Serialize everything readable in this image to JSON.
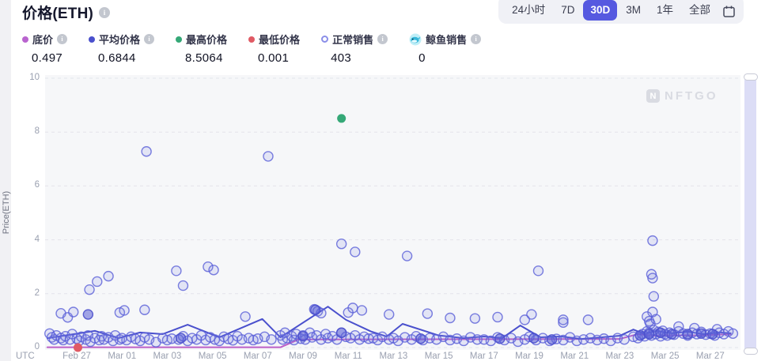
{
  "header": {
    "title": "价格(ETH)",
    "info_icon": "info-icon"
  },
  "watermark": {
    "logo_letter": "N",
    "text": "NFTGO"
  },
  "time_ranges": {
    "options": [
      "24小时",
      "7D",
      "30D",
      "3M",
      "1年",
      "全部"
    ],
    "active": "30D",
    "calendar_icon": "calendar-icon",
    "active_color": "#5659e0"
  },
  "stats": [
    {
      "label": "底价",
      "value": "0.497",
      "color": "#b964cf",
      "style": "solid",
      "has_info": true
    },
    {
      "label": "平均价格",
      "value": "0.6844",
      "color": "#4a50cd",
      "style": "solid",
      "has_info": true
    },
    {
      "label": "最高价格",
      "value": "8.5064",
      "color": "#35a877",
      "style": "solid",
      "has_info": false
    },
    {
      "label": "最低价格",
      "value": "0.001",
      "color": "#e05a64",
      "style": "solid",
      "has_info": false
    },
    {
      "label": "正常销售",
      "value": "403",
      "color": "#8a8ee8",
      "style": "ring",
      "has_info": true
    },
    {
      "label": "鲸鱼销售",
      "value": "0",
      "color": "#3bbdd8",
      "style": "whale-icon",
      "has_info": true
    }
  ],
  "chart_data": {
    "type": "scatter",
    "title": "价格(ETH)",
    "ylabel": "Price(ETH)",
    "ylim": [
      0,
      10
    ],
    "y_ticks": [
      0,
      2,
      4,
      6,
      8,
      10
    ],
    "x_axis_prefix": "UTC",
    "x_ticks": [
      {
        "label": "Feb 27",
        "day": 2
      },
      {
        "label": "Mar 01",
        "day": 4
      },
      {
        "label": "Mar 03",
        "day": 6
      },
      {
        "label": "Mar 05",
        "day": 8
      },
      {
        "label": "Mar 07",
        "day": 10
      },
      {
        "label": "Mar 09",
        "day": 12
      },
      {
        "label": "Mar 11",
        "day": 14
      },
      {
        "label": "Mar 13",
        "day": 16
      },
      {
        "label": "Mar 15",
        "day": 18
      },
      {
        "label": "Mar 17",
        "day": 20
      },
      {
        "label": "Mar 19",
        "day": 22
      },
      {
        "label": "Mar 21",
        "day": 24
      },
      {
        "label": "Mar 23",
        "day": 26
      },
      {
        "label": "Mar 25",
        "day": 28
      },
      {
        "label": "Mar 27",
        "day": 30
      }
    ],
    "grid": "horizontal-dashed",
    "legend_position": "top",
    "series": [
      {
        "name": "底价",
        "type": "line",
        "color": "#bc5fc6",
        "points": [
          [
            0.7,
            0.01
          ],
          [
            11.0,
            0.01
          ],
          [
            11.8,
            0.3
          ],
          [
            26.0,
            0.32
          ],
          [
            26.8,
            0.5
          ],
          [
            27.5,
            0.44
          ],
          [
            28.5,
            0.46
          ],
          [
            29.5,
            0.45
          ],
          [
            30.9,
            0.497
          ]
        ]
      },
      {
        "name": "平均价格",
        "type": "line",
        "color": "#4a50cd",
        "points": [
          [
            0.7,
            0.35
          ],
          [
            1.5,
            0.45
          ],
          [
            2.8,
            0.62
          ],
          [
            3.85,
            0.35
          ],
          [
            4.8,
            0.56
          ],
          [
            5.8,
            0.5
          ],
          [
            6.9,
            0.85
          ],
          [
            8.3,
            0.38
          ],
          [
            10.2,
            1.06
          ],
          [
            11.0,
            0.38
          ],
          [
            13.1,
            1.52
          ],
          [
            13.9,
            1.03
          ],
          [
            15.0,
            0.6
          ],
          [
            15.7,
            0.41
          ],
          [
            16.4,
            0.88
          ],
          [
            18.0,
            0.45
          ],
          [
            19.1,
            0.35
          ],
          [
            20.0,
            0.41
          ],
          [
            20.8,
            0.35
          ],
          [
            21.6,
            0.82
          ],
          [
            22.5,
            0.38
          ],
          [
            23.4,
            0.41
          ],
          [
            24.3,
            0.32
          ],
          [
            25.2,
            0.38
          ],
          [
            26.0,
            0.44
          ],
          [
            26.6,
            0.67
          ],
          [
            27.1,
            0.5
          ],
          [
            27.6,
            0.62
          ],
          [
            28.3,
            0.53
          ],
          [
            29.0,
            0.59
          ],
          [
            29.7,
            0.5
          ],
          [
            30.4,
            0.56
          ],
          [
            30.9,
            0.53
          ]
        ]
      },
      {
        "name": "正常销售",
        "type": "scatter",
        "color": "#5a5fd8",
        "fill": "#7b80e0",
        "points": [
          [
            5.08,
            7.28
          ],
          [
            10.46,
            7.1
          ],
          [
            13.7,
            3.85
          ],
          [
            14.3,
            3.55
          ],
          [
            16.6,
            3.4
          ],
          [
            22.4,
            2.85
          ],
          [
            27.45,
            3.97
          ],
          [
            27.4,
            2.72
          ],
          [
            27.45,
            2.58
          ],
          [
            27.5,
            1.9
          ],
          [
            27.45,
            1.32
          ],
          [
            2.56,
            2.15
          ],
          [
            2.9,
            2.45
          ],
          [
            3.4,
            2.65
          ],
          [
            6.4,
            2.85
          ],
          [
            6.7,
            2.3
          ],
          [
            7.8,
            3.0
          ],
          [
            8.05,
            2.88
          ],
          [
            9.45,
            1.15
          ],
          [
            1.3,
            1.27
          ],
          [
            1.6,
            1.12
          ],
          [
            1.85,
            1.32
          ],
          [
            3.9,
            1.3
          ],
          [
            4.1,
            1.38
          ],
          [
            5.0,
            1.4
          ],
          [
            12.5,
            1.42
          ],
          [
            12.65,
            1.35
          ],
          [
            12.8,
            1.28
          ],
          [
            14.0,
            1.3
          ],
          [
            14.2,
            1.47
          ],
          [
            14.6,
            1.38
          ],
          [
            15.8,
            1.23
          ],
          [
            17.5,
            1.26
          ],
          [
            18.5,
            1.1
          ],
          [
            19.6,
            1.08
          ],
          [
            20.6,
            1.13
          ],
          [
            21.8,
            1.03
          ],
          [
            22.1,
            1.23
          ],
          [
            23.5,
            1.03
          ],
          [
            23.5,
            0.93
          ],
          [
            24.6,
            1.03
          ],
          [
            27.2,
            1.15
          ],
          [
            27.3,
            0.98
          ],
          [
            27.35,
            0.88
          ],
          [
            27.6,
            1.05
          ],
          [
            28.6,
            0.78
          ],
          [
            29.3,
            0.72
          ],
          [
            30.3,
            0.68
          ],
          [
            0.8,
            0.52
          ],
          [
            0.9,
            0.38
          ],
          [
            1.0,
            0.3
          ],
          [
            1.1,
            0.45
          ],
          [
            1.3,
            0.35
          ],
          [
            1.4,
            0.28
          ],
          [
            1.5,
            0.42
          ],
          [
            1.7,
            0.3
          ],
          [
            1.8,
            0.5
          ],
          [
            2.0,
            0.33
          ],
          [
            2.1,
            0.25
          ],
          [
            2.2,
            0.4
          ],
          [
            2.4,
            0.3
          ],
          [
            2.5,
            0.45
          ],
          [
            2.6,
            0.22
          ],
          [
            2.8,
            0.35
          ],
          [
            3.0,
            0.28
          ],
          [
            3.1,
            0.42
          ],
          [
            3.2,
            0.3
          ],
          [
            3.4,
            0.38
          ],
          [
            3.6,
            0.25
          ],
          [
            3.7,
            0.45
          ],
          [
            3.9,
            0.3
          ],
          [
            4.0,
            0.35
          ],
          [
            4.2,
            0.28
          ],
          [
            4.4,
            0.4
          ],
          [
            4.6,
            0.32
          ],
          [
            4.8,
            0.25
          ],
          [
            5.0,
            0.38
          ],
          [
            5.2,
            0.3
          ],
          [
            5.5,
            0.2
          ],
          [
            5.8,
            0.35
          ],
          [
            6.0,
            0.28
          ],
          [
            6.2,
            0.33
          ],
          [
            6.5,
            0.3
          ],
          [
            6.7,
            0.42
          ],
          [
            6.9,
            0.25
          ],
          [
            7.1,
            0.35
          ],
          [
            7.3,
            0.3
          ],
          [
            7.5,
            0.45
          ],
          [
            7.7,
            0.28
          ],
          [
            7.9,
            0.38
          ],
          [
            8.1,
            0.3
          ],
          [
            8.3,
            0.25
          ],
          [
            8.5,
            0.4
          ],
          [
            8.7,
            0.32
          ],
          [
            8.9,
            0.27
          ],
          [
            9.1,
            0.42
          ],
          [
            9.3,
            0.3
          ],
          [
            9.6,
            0.35
          ],
          [
            9.8,
            0.28
          ],
          [
            10.0,
            0.33
          ],
          [
            10.3,
            0.4
          ],
          [
            10.6,
            0.3
          ],
          [
            11.0,
            0.45
          ],
          [
            11.1,
            0.3
          ],
          [
            11.2,
            0.55
          ],
          [
            11.3,
            0.35
          ],
          [
            11.5,
            0.42
          ],
          [
            11.6,
            0.28
          ],
          [
            11.7,
            0.5
          ],
          [
            11.9,
            0.33
          ],
          [
            12.0,
            0.45
          ],
          [
            12.1,
            0.3
          ],
          [
            12.3,
            0.55
          ],
          [
            12.4,
            0.38
          ],
          [
            12.6,
            0.45
          ],
          [
            12.8,
            0.3
          ],
          [
            13.0,
            0.5
          ],
          [
            13.1,
            0.35
          ],
          [
            13.3,
            0.42
          ],
          [
            13.5,
            0.3
          ],
          [
            13.7,
            0.55
          ],
          [
            13.9,
            0.4
          ],
          [
            14.1,
            0.35
          ],
          [
            14.3,
            0.45
          ],
          [
            14.5,
            0.3
          ],
          [
            14.7,
            0.4
          ],
          [
            14.9,
            0.33
          ],
          [
            15.1,
            0.35
          ],
          [
            15.3,
            0.28
          ],
          [
            15.5,
            0.4
          ],
          [
            15.8,
            0.3
          ],
          [
            16.0,
            0.35
          ],
          [
            16.2,
            0.25
          ],
          [
            16.5,
            0.38
          ],
          [
            16.8,
            0.3
          ],
          [
            17.0,
            0.42
          ],
          [
            17.3,
            0.28
          ],
          [
            17.6,
            0.35
          ],
          [
            17.9,
            0.3
          ],
          [
            18.2,
            0.4
          ],
          [
            18.5,
            0.28
          ],
          [
            18.8,
            0.33
          ],
          [
            19.1,
            0.25
          ],
          [
            19.4,
            0.38
          ],
          [
            19.7,
            0.3
          ],
          [
            20.0,
            0.3
          ],
          [
            20.3,
            0.25
          ],
          [
            20.6,
            0.38
          ],
          [
            20.9,
            0.28
          ],
          [
            21.2,
            0.35
          ],
          [
            21.5,
            0.22
          ],
          [
            21.8,
            0.3
          ],
          [
            22.0,
            0.4
          ],
          [
            22.3,
            0.28
          ],
          [
            22.6,
            0.35
          ],
          [
            22.9,
            0.25
          ],
          [
            23.2,
            0.32
          ],
          [
            23.5,
            0.28
          ],
          [
            23.8,
            0.38
          ],
          [
            24.1,
            0.25
          ],
          [
            24.4,
            0.3
          ],
          [
            24.7,
            0.35
          ],
          [
            25.0,
            0.28
          ],
          [
            25.3,
            0.33
          ],
          [
            25.6,
            0.25
          ],
          [
            25.9,
            0.35
          ],
          [
            26.2,
            0.3
          ],
          [
            26.6,
            0.4
          ],
          [
            26.8,
            0.35
          ],
          [
            27.0,
            0.5
          ],
          [
            27.1,
            0.42
          ],
          [
            27.2,
            0.6
          ],
          [
            27.3,
            0.55
          ],
          [
            27.4,
            0.45
          ],
          [
            27.5,
            0.65
          ],
          [
            27.6,
            0.5
          ],
          [
            27.7,
            0.58
          ],
          [
            27.8,
            0.42
          ],
          [
            27.9,
            0.62
          ],
          [
            28.0,
            0.5
          ],
          [
            28.1,
            0.45
          ],
          [
            28.2,
            0.55
          ],
          [
            28.4,
            0.48
          ],
          [
            28.6,
            0.6
          ],
          [
            28.8,
            0.52
          ],
          [
            29.0,
            0.45
          ],
          [
            29.2,
            0.55
          ],
          [
            29.4,
            0.5
          ],
          [
            29.6,
            0.58
          ],
          [
            29.8,
            0.48
          ],
          [
            30.0,
            0.52
          ],
          [
            30.2,
            0.45
          ],
          [
            30.4,
            0.55
          ],
          [
            30.6,
            0.5
          ],
          [
            30.8,
            0.6
          ],
          [
            31.0,
            0.52
          ]
        ]
      },
      {
        "name": "正常销售-dense",
        "type": "scatter-dark",
        "color": "#4b50cc",
        "fill": "#595ed6",
        "points": [
          [
            2.5,
            1.23
          ],
          [
            6.6,
            0.35
          ],
          [
            12.0,
            0.42
          ],
          [
            12.55,
            1.4
          ],
          [
            13.7,
            0.55
          ],
          [
            17.2,
            0.33
          ],
          [
            20.7,
            0.33
          ],
          [
            22.2,
            0.35
          ],
          [
            23.0,
            0.3
          ],
          [
            26.9,
            0.45
          ],
          [
            27.3,
            0.5
          ],
          [
            27.8,
            0.55
          ],
          [
            28.3,
            0.5
          ],
          [
            29.0,
            0.5
          ],
          [
            29.6,
            0.52
          ],
          [
            30.1,
            0.5
          ]
        ]
      },
      {
        "name": "最高价格",
        "type": "point",
        "color": "#35a877",
        "points": [
          [
            13.7,
            8.5064
          ]
        ]
      },
      {
        "name": "最低价格",
        "type": "point",
        "color": "#e05a64",
        "points": [
          [
            2.05,
            0.001
          ]
        ]
      }
    ]
  }
}
